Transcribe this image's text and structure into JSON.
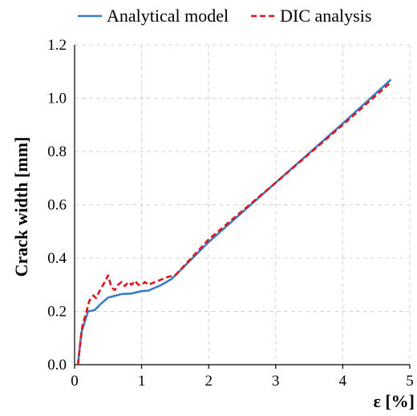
{
  "chart_data": {
    "type": "line",
    "title": "",
    "xlabel": "ε  [%]",
    "ylabel": "Crack width [mm]",
    "xlim": [
      0,
      5
    ],
    "ylim": [
      0,
      1.2
    ],
    "xticks": [
      "0",
      "1",
      "2",
      "3",
      "4",
      "5"
    ],
    "yticks": [
      "0.0",
      "0.2",
      "0.4",
      "0.6",
      "0.8",
      "1.0",
      "1.2"
    ],
    "grid": true,
    "legend": "top",
    "colors": {
      "analytical": "#3b7dc4",
      "dic": "#e0141e"
    },
    "series": [
      {
        "name": "Analytical model",
        "style": "solid",
        "x": [
          0.05,
          0.1,
          0.2,
          0.3,
          0.4,
          0.5,
          0.7,
          0.85,
          1.0,
          1.1,
          1.3,
          1.45,
          2.0,
          3.0,
          4.0,
          4.72
        ],
        "y": [
          0.0,
          0.12,
          0.2,
          0.205,
          0.23,
          0.252,
          0.265,
          0.267,
          0.276,
          0.278,
          0.3,
          0.322,
          0.46,
          0.683,
          0.905,
          1.07
        ]
      },
      {
        "name": "DIC analysis",
        "style": "dashed",
        "x": [
          0.05,
          0.08,
          0.12,
          0.18,
          0.22,
          0.28,
          0.32,
          0.38,
          0.45,
          0.5,
          0.55,
          0.6,
          0.65,
          0.7,
          0.75,
          0.8,
          0.85,
          0.9,
          0.95,
          1.0,
          1.05,
          1.1,
          1.2,
          1.3,
          1.4,
          1.5,
          2.0,
          3.0,
          4.0,
          4.72
        ],
        "y": [
          0.0,
          0.07,
          0.15,
          0.2,
          0.24,
          0.26,
          0.25,
          0.28,
          0.31,
          0.335,
          0.29,
          0.28,
          0.3,
          0.31,
          0.295,
          0.31,
          0.3,
          0.315,
          0.3,
          0.3,
          0.31,
          0.3,
          0.31,
          0.32,
          0.33,
          0.335,
          0.47,
          0.683,
          0.9,
          1.06
        ]
      }
    ]
  }
}
